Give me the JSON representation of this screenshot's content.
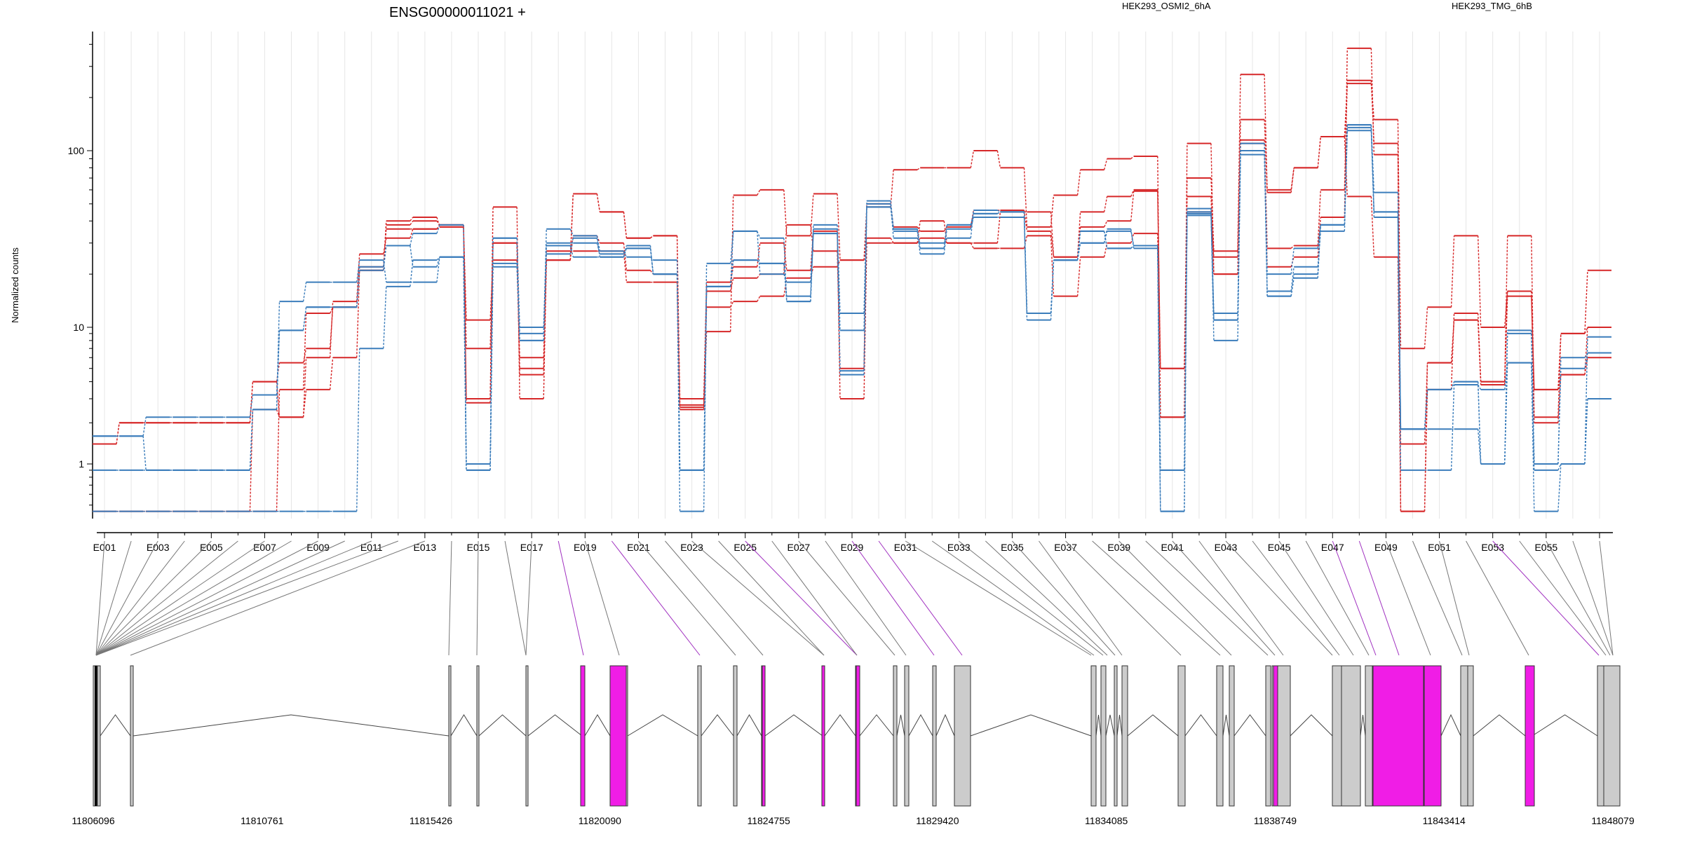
{
  "title": "ENSG00000011021 +",
  "legend": [
    {
      "name": "HEK293_OSMI2_6hA",
      "color": "#d62728"
    },
    {
      "name": "HEK293_TMG_6hB",
      "color": "#3b7dbb"
    }
  ],
  "colors": {
    "red": "#d62728",
    "blue": "#3b7dbb",
    "highlight": "#f01de6",
    "exon_fill": "#cccccc"
  },
  "chart_data": {
    "type": "line",
    "scale": "log",
    "ylabel": "Normalized counts",
    "y_tick_labels": [
      "1",
      "10",
      "100"
    ],
    "exon_labels": [
      "E001",
      "E003",
      "E005",
      "E007",
      "E009",
      "E011",
      "E013",
      "E015",
      "E017",
      "E019",
      "E021",
      "E023",
      "E025",
      "E027",
      "E029",
      "E031",
      "E033",
      "E035",
      "E037",
      "E039",
      "E041",
      "E043",
      "E045",
      "E047",
      "E049",
      "E051",
      "E053",
      "E055"
    ],
    "highlighted_exons": [
      18,
      20,
      25,
      29,
      30,
      47,
      48,
      53
    ],
    "genomic_tick_labels": [
      "11806096",
      "11810761",
      "11815426",
      "11820090",
      "11824755",
      "11829420",
      "11834085",
      "11838749",
      "11843414",
      "11848079"
    ],
    "genomic_range": [
      11806096,
      11848079
    ],
    "series": [
      {
        "group": "red",
        "values": [
          1.4,
          2.0,
          2.0,
          2.0,
          2.0,
          2.0,
          4.0,
          5.5,
          7.0,
          13,
          21,
          40,
          42,
          37,
          11,
          24,
          6,
          24,
          33,
          30,
          21,
          20,
          3.0,
          18,
          22,
          30,
          21,
          35,
          3.0,
          30,
          30,
          40,
          30,
          30,
          45,
          45,
          25,
          45,
          55,
          60,
          5.0,
          45,
          25,
          115,
          28,
          29,
          60,
          250,
          110,
          1.4,
          5.5,
          11,
          3.8,
          16,
          3.5,
          4.5,
          10
        ]
      },
      {
        "group": "red",
        "values": [
          1.4,
          2.0,
          2.0,
          2.0,
          2.0,
          2.0,
          4.0,
          2.2,
          3.5,
          6,
          21,
          38,
          40,
          38,
          3,
          48,
          3,
          24,
          57,
          45,
          32,
          33,
          2.7,
          16,
          19,
          20,
          38,
          27,
          5.0,
          50,
          37,
          35,
          37,
          46,
          46,
          35,
          25,
          37,
          40,
          59,
          5.0,
          70,
          27,
          270,
          58,
          80,
          120,
          55,
          25,
          0.45,
          5.5,
          11,
          4.0,
          33,
          2.0,
          4.5,
          6.0
        ]
      },
      {
        "group": "red",
        "values": [
          0.45,
          0.45,
          0.45,
          0.45,
          0.45,
          0.45,
          0.45,
          3.5,
          12,
          13,
          22,
          36,
          36,
          38,
          7,
          30,
          5,
          27,
          27,
          27,
          18,
          18,
          2.5,
          13,
          14,
          15,
          19,
          22,
          24,
          32,
          30,
          32,
          30,
          28,
          28,
          33,
          15,
          25,
          30,
          34,
          2.2,
          55,
          20,
          110,
          22,
          25,
          42,
          380,
          95,
          0.45,
          3.5,
          12,
          4.0,
          15,
          3.5,
          9.0,
          10
        ]
      },
      {
        "group": "red",
        "values": [
          0.45,
          0.45,
          0.45,
          0.45,
          0.45,
          0.45,
          2.5,
          2.2,
          6,
          14,
          26,
          32,
          36,
          37,
          2.8,
          30,
          4.5,
          24,
          57,
          45,
          32,
          33,
          2.6,
          9.3,
          56,
          60,
          33,
          57,
          24,
          48,
          78,
          80,
          80,
          100,
          80,
          37,
          56,
          78,
          90,
          93,
          2.2,
          110,
          20,
          150,
          60,
          80,
          120,
          240,
          150,
          7.0,
          13,
          33,
          10,
          16,
          2.2,
          9.0,
          21
        ]
      },
      {
        "group": "blue",
        "values": [
          1.6,
          1.6,
          2.2,
          2.2,
          2.2,
          2.2,
          3.2,
          9.5,
          13,
          13,
          22,
          29,
          22,
          25,
          0.9,
          22,
          8,
          36,
          33,
          27,
          25,
          24,
          0.9,
          23,
          35,
          32,
          14,
          38,
          12,
          52,
          36,
          28,
          38,
          44,
          45,
          12,
          24,
          35,
          28,
          29,
          0.45,
          47,
          12,
          100,
          15,
          20,
          38,
          140,
          58,
          1.8,
          3.5,
          4.0,
          1.0,
          9.5,
          1.0,
          6.0,
          6.5
        ]
      },
      {
        "group": "blue",
        "values": [
          0.9,
          0.9,
          0.9,
          0.9,
          0.9,
          0.9,
          2.5,
          14,
          18,
          18,
          24,
          18,
          18,
          25,
          1.0,
          32,
          9,
          26,
          32,
          25,
          28,
          20,
          0.9,
          17,
          35,
          20,
          18,
          36,
          9.5,
          50,
          32,
          30,
          32,
          46,
          45,
          12,
          24,
          35,
          28,
          29,
          0.9,
          45,
          8,
          95,
          16,
          22,
          35,
          130,
          45,
          1.8,
          3.5,
          4.0,
          1.0,
          9.0,
          1.0,
          5.0,
          6.5
        ]
      },
      {
        "group": "blue",
        "values": [
          1.6,
          1.6,
          0.9,
          0.9,
          0.9,
          0.9,
          2.5,
          9.5,
          13,
          13,
          21,
          29,
          34,
          38,
          1.0,
          32,
          10,
          30,
          30,
          26,
          28,
          20,
          0.9,
          17,
          24,
          23,
          14,
          34,
          4.8,
          48,
          36,
          28,
          38,
          44,
          45,
          12,
          24,
          30,
          35,
          29,
          0.9,
          43,
          11,
          110,
          15,
          19,
          38,
          140,
          45,
          1.8,
          1.8,
          1.8,
          1.0,
          5.5,
          0.9,
          1.0,
          3.0
        ]
      },
      {
        "group": "blue",
        "values": [
          0.45,
          0.45,
          0.45,
          0.45,
          0.45,
          0.45,
          0.45,
          0.45,
          0.45,
          0.45,
          7,
          17,
          24,
          25,
          0.9,
          23,
          8,
          29,
          25,
          25,
          29,
          20,
          0.45,
          17,
          24,
          23,
          15,
          34,
          4.5,
          48,
          35,
          26,
          36,
          42,
          42,
          11,
          24,
          30,
          36,
          28,
          0.45,
          44,
          11,
          100,
          20,
          28,
          38,
          135,
          42,
          0.9,
          0.9,
          3.8,
          3.5,
          5.5,
          0.45,
          1.0,
          8.5
        ]
      }
    ]
  }
}
